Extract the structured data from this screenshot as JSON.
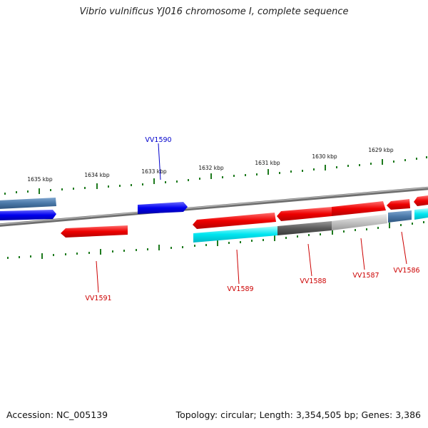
{
  "title": "Vibrio vulnificus YJ016 chromosome I, complete sequence",
  "footer": {
    "accession": "Accession: NC_005139",
    "summary": "Topology: circular; Length: 3,354,505 bp; Genes: 3,386"
  },
  "scale_labels": [
    "1635 kbp",
    "1634 kbp",
    "1633 kbp",
    "1632 kbp",
    "1631 kbp",
    "1630 kbp",
    "1629 kbp"
  ],
  "gene_labels": [
    {
      "id": "VV1590",
      "color": "#0000cc"
    },
    {
      "id": "VV1591",
      "color": "#cc0000"
    },
    {
      "id": "VV1589",
      "color": "#cc0000"
    },
    {
      "id": "VV1588",
      "color": "#cc0000"
    },
    {
      "id": "VV1587",
      "color": "#cc0000"
    },
    {
      "id": "VV1586",
      "color": "#cc0000"
    }
  ],
  "colors": {
    "forward_cds": "#0000ee",
    "reverse_cds": "#ee0000",
    "steel_blue": "#4a78a8",
    "cyan": "#00e5f0",
    "dark_gray": "#555555",
    "light_gray": "#bdbdbd",
    "backbone": "#808080",
    "tick_green": "#1e7a1e"
  }
}
